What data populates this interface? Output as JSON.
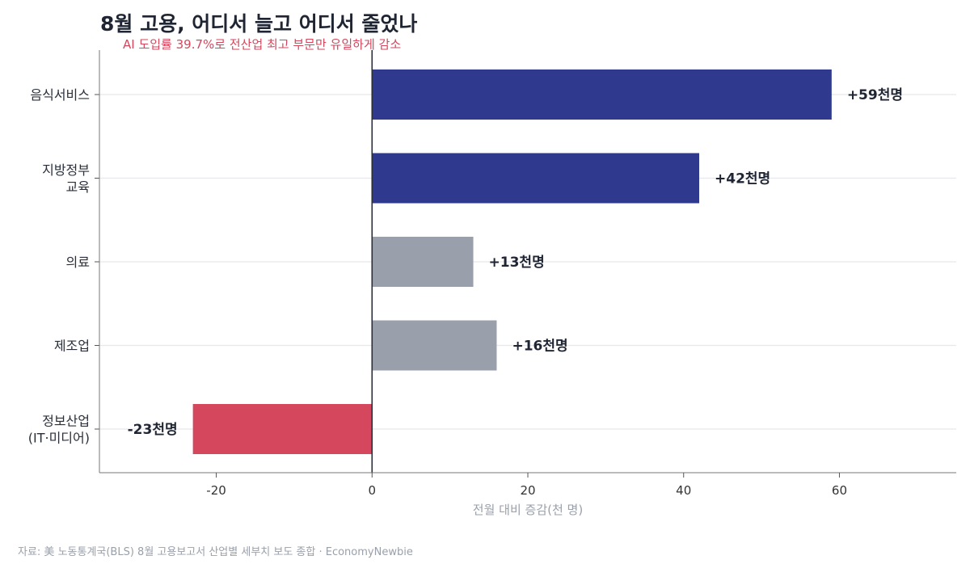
{
  "title": "8월 고용, 어디서 늘고 어디서 줄었나",
  "subtitle": "AI 도입률 39.7%로 전산업 최고 부문만 유일하게 감소",
  "source": "자료: 美 노동통계국(BLS) 8월 고용보고서 산업별 세부치 보도 종합 · EconomyNewbie",
  "colors": {
    "increase_high": "#2f3a8e",
    "increase_low": "#9aa0ab",
    "decrease": "#d4475c"
  },
  "chart_data": {
    "type": "bar",
    "orientation": "horizontal",
    "categories": [
      [
        "음식서비스"
      ],
      [
        "지방정부",
        "교육"
      ],
      [
        "의료"
      ],
      [
        "제조업"
      ],
      [
        "정보산업",
        "(IT·미디어)"
      ]
    ],
    "values": [
      59,
      42,
      13,
      16,
      -23
    ],
    "data_labels": [
      "+59천명",
      "+42천명",
      "+13천명",
      "+16천명",
      "-23천명"
    ],
    "bar_colors": [
      "#2f3a8e",
      "#2f3a8e",
      "#9aa0ab",
      "#9aa0ab",
      "#d4475c"
    ],
    "xlabel": "전월 대비 증감(천 명)",
    "ylabel": "",
    "xlim": [
      -35,
      75
    ],
    "xticks": [
      -20,
      0,
      20,
      40,
      60
    ],
    "grid": "horizontal"
  }
}
